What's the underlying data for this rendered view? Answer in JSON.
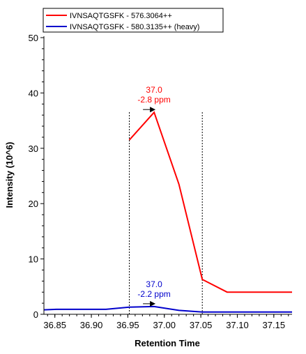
{
  "chart_data": {
    "type": "line",
    "title": "",
    "xlabel": "Retention Time",
    "ylabel": "Intensity (10^6)",
    "xlim": [
      36.835,
      37.175
    ],
    "ylim": [
      0,
      50
    ],
    "x_ticks": [
      "36.85",
      "36.90",
      "36.95",
      "37.00",
      "37.05",
      "37.10",
      "37.15"
    ],
    "x_tick_values": [
      36.85,
      36.9,
      36.95,
      37.0,
      37.05,
      37.1,
      37.15
    ],
    "y_ticks": [
      "0",
      "10",
      "20",
      "30",
      "40",
      "50"
    ],
    "y_tick_values": [
      0,
      10,
      20,
      30,
      40,
      50
    ],
    "grid": false,
    "legend_position": "top",
    "integration_bounds": [
      36.952,
      37.052
    ],
    "series": [
      {
        "name": "IVNSAQTGSFK - 576.3064++",
        "color": "#ff0000",
        "x": [
          36.952,
          36.986,
          37.02,
          37.052,
          37.086,
          37.12,
          37.154,
          37.175
        ],
        "y": [
          31.5,
          36.5,
          23.5,
          6.3,
          4.0,
          4.0,
          4.0,
          4.0
        ]
      },
      {
        "name": "IVNSAQTGSFK - 580.3135++ (heavy)",
        "color": "#0000cc",
        "x": [
          36.835,
          36.852,
          36.886,
          36.92,
          36.952,
          36.986,
          37.02,
          37.052,
          37.086,
          37.12,
          37.154,
          37.175
        ],
        "y": [
          0.8,
          0.9,
          0.9,
          0.9,
          1.3,
          1.4,
          0.7,
          0.4,
          0.4,
          0.4,
          0.4,
          0.4
        ]
      }
    ],
    "annotations": [
      {
        "series": 0,
        "x": 36.986,
        "y": 36.5,
        "time": "37.0",
        "ppm": "-2.8 ppm",
        "color": "#ff0000"
      },
      {
        "series": 1,
        "x": 36.986,
        "y": 1.4,
        "time": "37.0",
        "ppm": "-2.2 ppm",
        "color": "#0000cc"
      }
    ]
  }
}
